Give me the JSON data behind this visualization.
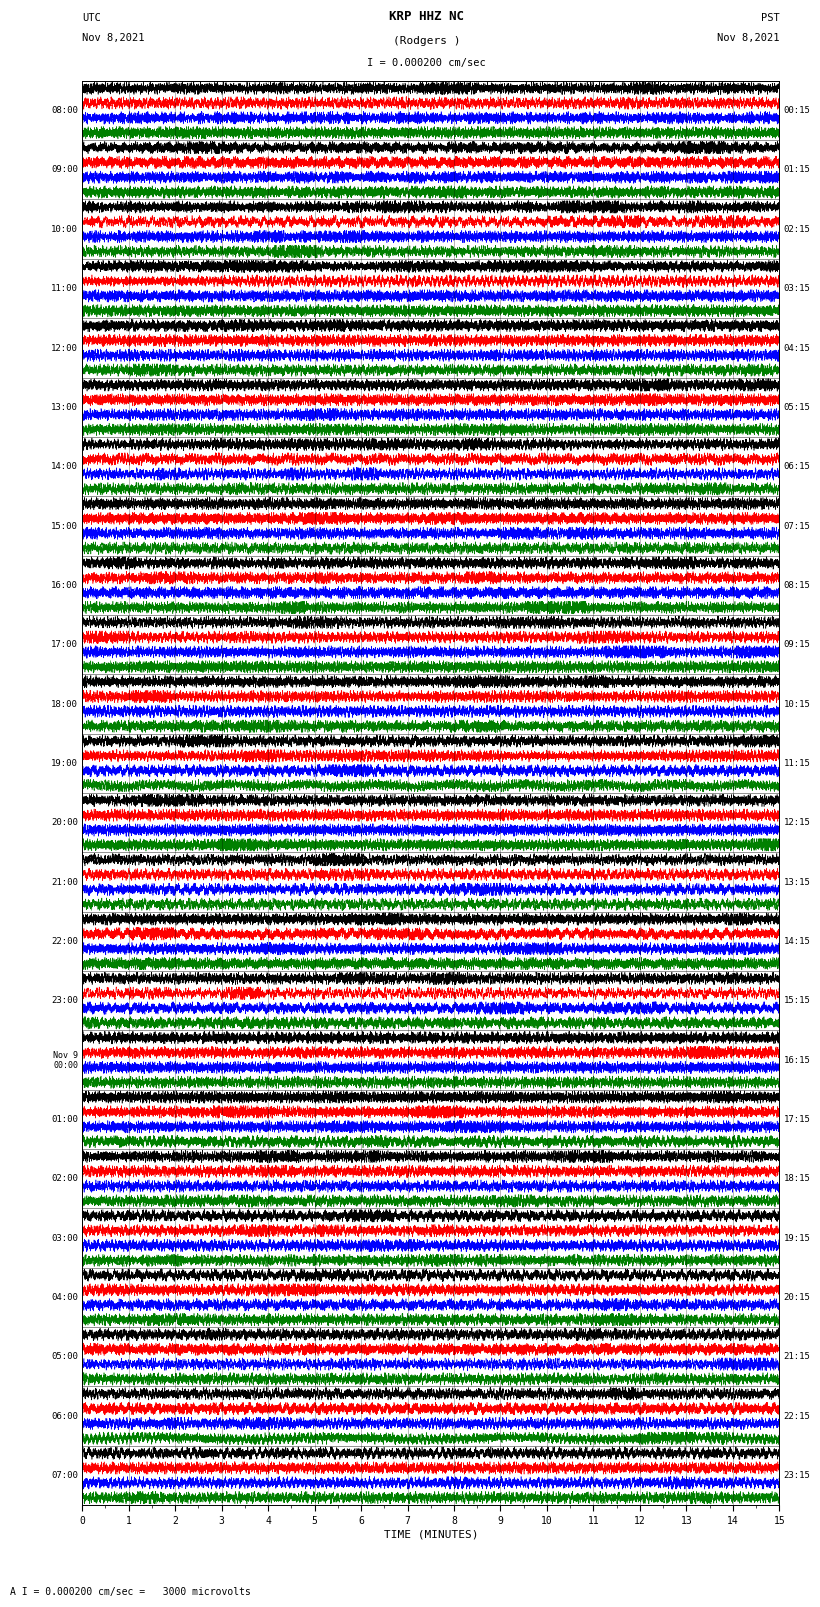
{
  "title_line1": "KRP HHZ NC",
  "title_line2": "(Rodgers )",
  "scale_label": "I = 0.000200 cm/sec",
  "utc_label": "UTC\nNov 8,2021",
  "pst_label": "PST\nNov 8,2021",
  "bottom_label": "A I = 0.000200 cm/sec =   3000 microvolts",
  "xlabel": "TIME (MINUTES)",
  "left_times": [
    "08:00",
    "09:00",
    "10:00",
    "11:00",
    "12:00",
    "13:00",
    "14:00",
    "15:00",
    "16:00",
    "17:00",
    "18:00",
    "19:00",
    "20:00",
    "21:00",
    "22:00",
    "23:00",
    "Nov 9\n00:00",
    "01:00",
    "02:00",
    "03:00",
    "04:00",
    "05:00",
    "06:00",
    "07:00"
  ],
  "right_times": [
    "00:15",
    "01:15",
    "02:15",
    "03:15",
    "04:15",
    "05:15",
    "06:15",
    "07:15",
    "08:15",
    "09:15",
    "10:15",
    "11:15",
    "12:15",
    "13:15",
    "14:15",
    "15:15",
    "16:15",
    "17:15",
    "18:15",
    "19:15",
    "20:15",
    "21:15",
    "22:15",
    "23:15"
  ],
  "n_rows": 24,
  "traces_per_row": 4,
  "minutes_per_row": 15,
  "colors": [
    "black",
    "red",
    "blue",
    "green"
  ],
  "bg_color": "white",
  "noise_seed": 42,
  "samples_per_row": 9000,
  "trace_amplitude": 0.42,
  "linewidth": 0.4
}
